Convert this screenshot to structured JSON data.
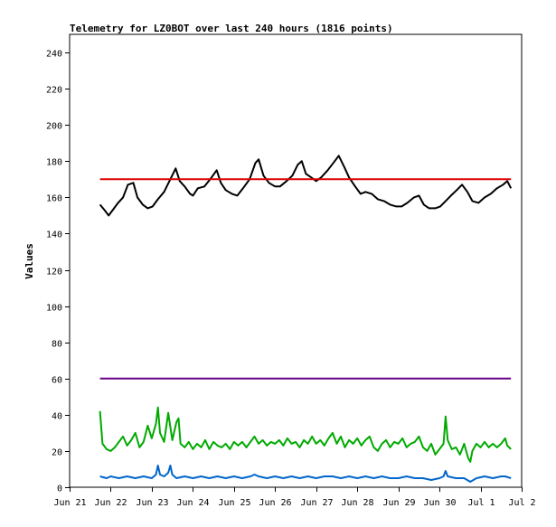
{
  "chart_data": {
    "type": "line",
    "title": "Telemetry for LZ0BOT over last 240 hours (1816 points)",
    "xlabel": "",
    "ylabel": "Values",
    "x_tick_labels": [
      "Jun 21",
      "Jun 22",
      "Jun 23",
      "Jun 24",
      "Jun 25",
      "Jun 26",
      "Jun 27",
      "Jun 28",
      "Jun 29",
      "Jun 30",
      "Jul 1",
      "Jul 2"
    ],
    "y_ticks": [
      0,
      20,
      40,
      60,
      80,
      100,
      120,
      140,
      160,
      180,
      200,
      220,
      240
    ],
    "ylim": [
      0,
      250
    ],
    "xlim_days": [
      0,
      11
    ],
    "grid": false,
    "legend": "none",
    "series": [
      {
        "color": "#000000",
        "points": [
          [
            0.74,
            156
          ],
          [
            0.85,
            153
          ],
          [
            0.95,
            150
          ],
          [
            1.05,
            153
          ],
          [
            1.18,
            157
          ],
          [
            1.3,
            160
          ],
          [
            1.42,
            167
          ],
          [
            1.55,
            168
          ],
          [
            1.65,
            160
          ],
          [
            1.78,
            156
          ],
          [
            1.9,
            154
          ],
          [
            2.02,
            155
          ],
          [
            2.15,
            159
          ],
          [
            2.3,
            163
          ],
          [
            2.45,
            170
          ],
          [
            2.58,
            176
          ],
          [
            2.68,
            169
          ],
          [
            2.8,
            166
          ],
          [
            2.93,
            162
          ],
          [
            3.0,
            161
          ],
          [
            3.12,
            165
          ],
          [
            3.28,
            166
          ],
          [
            3.42,
            170
          ],
          [
            3.58,
            175
          ],
          [
            3.68,
            168
          ],
          [
            3.8,
            164
          ],
          [
            3.95,
            162
          ],
          [
            4.08,
            161
          ],
          [
            4.22,
            165
          ],
          [
            4.38,
            170
          ],
          [
            4.52,
            179
          ],
          [
            4.6,
            181
          ],
          [
            4.72,
            172
          ],
          [
            4.85,
            168
          ],
          [
            5.0,
            166
          ],
          [
            5.12,
            166
          ],
          [
            5.28,
            169
          ],
          [
            5.42,
            172
          ],
          [
            5.55,
            178
          ],
          [
            5.65,
            180
          ],
          [
            5.75,
            173
          ],
          [
            5.88,
            171
          ],
          [
            6.0,
            169
          ],
          [
            6.12,
            171
          ],
          [
            6.28,
            175
          ],
          [
            6.45,
            180
          ],
          [
            6.55,
            183
          ],
          [
            6.68,
            177
          ],
          [
            6.8,
            171
          ],
          [
            6.95,
            166
          ],
          [
            7.08,
            162
          ],
          [
            7.2,
            163
          ],
          [
            7.35,
            162
          ],
          [
            7.5,
            159
          ],
          [
            7.65,
            158
          ],
          [
            7.8,
            156
          ],
          [
            7.95,
            155
          ],
          [
            8.08,
            155
          ],
          [
            8.22,
            157
          ],
          [
            8.38,
            160
          ],
          [
            8.5,
            161
          ],
          [
            8.62,
            156
          ],
          [
            8.75,
            154
          ],
          [
            8.9,
            154
          ],
          [
            9.02,
            155
          ],
          [
            9.15,
            158
          ],
          [
            9.28,
            161
          ],
          [
            9.42,
            164
          ],
          [
            9.55,
            167
          ],
          [
            9.68,
            163
          ],
          [
            9.8,
            158
          ],
          [
            9.95,
            157
          ],
          [
            10.1,
            160
          ],
          [
            10.25,
            162
          ],
          [
            10.4,
            165
          ],
          [
            10.55,
            167
          ],
          [
            10.65,
            169
          ],
          [
            10.74,
            165
          ]
        ]
      },
      {
        "color": "#dd0000",
        "points": [
          [
            0.74,
            170
          ],
          [
            10.74,
            170
          ]
        ]
      },
      {
        "color": "#660088",
        "points": [
          [
            0.74,
            60
          ],
          [
            10.74,
            60
          ]
        ]
      },
      {
        "color": "#00aa00",
        "points": [
          [
            0.74,
            42
          ],
          [
            0.8,
            24
          ],
          [
            0.9,
            21
          ],
          [
            1.0,
            20
          ],
          [
            1.1,
            22
          ],
          [
            1.2,
            25
          ],
          [
            1.3,
            28
          ],
          [
            1.4,
            23
          ],
          [
            1.5,
            26
          ],
          [
            1.6,
            30
          ],
          [
            1.7,
            22
          ],
          [
            1.8,
            25
          ],
          [
            1.9,
            34
          ],
          [
            2.0,
            27
          ],
          [
            2.1,
            35
          ],
          [
            2.15,
            44
          ],
          [
            2.2,
            30
          ],
          [
            2.3,
            25
          ],
          [
            2.4,
            41
          ],
          [
            2.5,
            26
          ],
          [
            2.6,
            36
          ],
          [
            2.65,
            38
          ],
          [
            2.7,
            24
          ],
          [
            2.8,
            22
          ],
          [
            2.9,
            25
          ],
          [
            3.0,
            21
          ],
          [
            3.1,
            24
          ],
          [
            3.2,
            22
          ],
          [
            3.3,
            26
          ],
          [
            3.4,
            21
          ],
          [
            3.5,
            25
          ],
          [
            3.6,
            23
          ],
          [
            3.7,
            22
          ],
          [
            3.8,
            24
          ],
          [
            3.9,
            21
          ],
          [
            4.0,
            25
          ],
          [
            4.1,
            23
          ],
          [
            4.2,
            25
          ],
          [
            4.3,
            22
          ],
          [
            4.4,
            25
          ],
          [
            4.5,
            28
          ],
          [
            4.6,
            24
          ],
          [
            4.7,
            26
          ],
          [
            4.8,
            23
          ],
          [
            4.9,
            25
          ],
          [
            5.0,
            24
          ],
          [
            5.1,
            26
          ],
          [
            5.2,
            23
          ],
          [
            5.3,
            27
          ],
          [
            5.4,
            24
          ],
          [
            5.5,
            25
          ],
          [
            5.6,
            22
          ],
          [
            5.7,
            26
          ],
          [
            5.8,
            24
          ],
          [
            5.9,
            28
          ],
          [
            6.0,
            24
          ],
          [
            6.1,
            26
          ],
          [
            6.2,
            23
          ],
          [
            6.3,
            27
          ],
          [
            6.4,
            30
          ],
          [
            6.5,
            24
          ],
          [
            6.6,
            28
          ],
          [
            6.7,
            22
          ],
          [
            6.8,
            26
          ],
          [
            6.9,
            24
          ],
          [
            7.0,
            27
          ],
          [
            7.1,
            23
          ],
          [
            7.2,
            26
          ],
          [
            7.3,
            28
          ],
          [
            7.4,
            22
          ],
          [
            7.5,
            20
          ],
          [
            7.6,
            24
          ],
          [
            7.7,
            26
          ],
          [
            7.8,
            22
          ],
          [
            7.9,
            25
          ],
          [
            8.0,
            24
          ],
          [
            8.1,
            27
          ],
          [
            8.2,
            22
          ],
          [
            8.3,
            24
          ],
          [
            8.4,
            25
          ],
          [
            8.5,
            28
          ],
          [
            8.6,
            22
          ],
          [
            8.7,
            20
          ],
          [
            8.8,
            24
          ],
          [
            8.9,
            18
          ],
          [
            9.0,
            21
          ],
          [
            9.1,
            24
          ],
          [
            9.15,
            39
          ],
          [
            9.2,
            26
          ],
          [
            9.3,
            21
          ],
          [
            9.4,
            22
          ],
          [
            9.5,
            18
          ],
          [
            9.6,
            24
          ],
          [
            9.7,
            16
          ],
          [
            9.75,
            14
          ],
          [
            9.8,
            20
          ],
          [
            9.9,
            24
          ],
          [
            10.0,
            22
          ],
          [
            10.1,
            25
          ],
          [
            10.2,
            22
          ],
          [
            10.3,
            24
          ],
          [
            10.4,
            22
          ],
          [
            10.5,
            24
          ],
          [
            10.6,
            27
          ],
          [
            10.65,
            23
          ],
          [
            10.74,
            21
          ]
        ]
      },
      {
        "color": "#0066cc",
        "points": [
          [
            0.74,
            6
          ],
          [
            0.9,
            5
          ],
          [
            1.0,
            6
          ],
          [
            1.2,
            5
          ],
          [
            1.4,
            6
          ],
          [
            1.6,
            5
          ],
          [
            1.8,
            6
          ],
          [
            2.0,
            5
          ],
          [
            2.1,
            7
          ],
          [
            2.15,
            12
          ],
          [
            2.2,
            7
          ],
          [
            2.3,
            6
          ],
          [
            2.4,
            8
          ],
          [
            2.45,
            12
          ],
          [
            2.5,
            7
          ],
          [
            2.6,
            5
          ],
          [
            2.8,
            6
          ],
          [
            3.0,
            5
          ],
          [
            3.2,
            6
          ],
          [
            3.4,
            5
          ],
          [
            3.6,
            6
          ],
          [
            3.8,
            5
          ],
          [
            4.0,
            6
          ],
          [
            4.2,
            5
          ],
          [
            4.4,
            6
          ],
          [
            4.5,
            7
          ],
          [
            4.6,
            6
          ],
          [
            4.8,
            5
          ],
          [
            5.0,
            6
          ],
          [
            5.2,
            5
          ],
          [
            5.4,
            6
          ],
          [
            5.6,
            5
          ],
          [
            5.8,
            6
          ],
          [
            6.0,
            5
          ],
          [
            6.2,
            6
          ],
          [
            6.4,
            6
          ],
          [
            6.6,
            5
          ],
          [
            6.8,
            6
          ],
          [
            7.0,
            5
          ],
          [
            7.2,
            6
          ],
          [
            7.4,
            5
          ],
          [
            7.6,
            6
          ],
          [
            7.8,
            5
          ],
          [
            8.0,
            5
          ],
          [
            8.2,
            6
          ],
          [
            8.4,
            5
          ],
          [
            8.6,
            5
          ],
          [
            8.8,
            4
          ],
          [
            9.0,
            5
          ],
          [
            9.1,
            6
          ],
          [
            9.15,
            9
          ],
          [
            9.2,
            6
          ],
          [
            9.4,
            5
          ],
          [
            9.6,
            5
          ],
          [
            9.75,
            3
          ],
          [
            9.9,
            5
          ],
          [
            10.1,
            6
          ],
          [
            10.3,
            5
          ],
          [
            10.5,
            6
          ],
          [
            10.6,
            6
          ],
          [
            10.74,
            5
          ]
        ]
      }
    ]
  }
}
